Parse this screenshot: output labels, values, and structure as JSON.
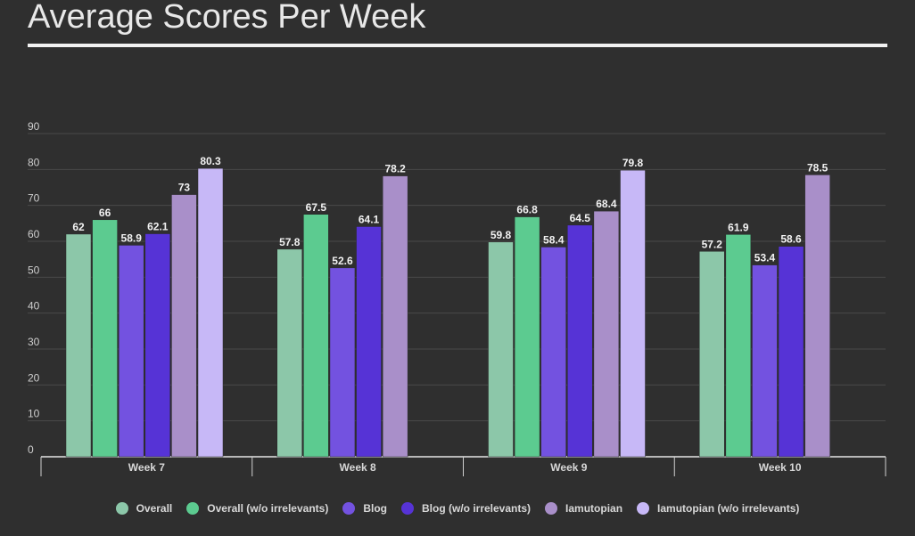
{
  "title": "Average Scores Per Week",
  "chart_data": {
    "type": "bar",
    "categories": [
      "Week 7",
      "Week 8",
      "Week 9",
      "Week 10"
    ],
    "ylim": [
      0,
      90
    ],
    "yticks": [
      0,
      10,
      20,
      30,
      40,
      50,
      60,
      70,
      80,
      90
    ],
    "grid": true,
    "legend_position": "bottom",
    "series": [
      {
        "name": "Overall",
        "color": "#8cc7a9",
        "values": [
          62,
          57.8,
          59.8,
          57.2
        ],
        "labels": [
          "62",
          "57.8",
          "59.8",
          "57.2"
        ]
      },
      {
        "name": "Overall (w/o irrelevants)",
        "color": "#5ccb90",
        "values": [
          66,
          67.5,
          66.8,
          61.9
        ],
        "labels": [
          "66",
          "67.5",
          "66.8",
          "61.9"
        ]
      },
      {
        "name": "Blog",
        "color": "#7352e0",
        "values": [
          58.9,
          52.6,
          58.4,
          53.4
        ],
        "labels": [
          "58.9",
          "52.6",
          "58.4",
          "53.4"
        ]
      },
      {
        "name": "Blog (w/o irrelevants)",
        "color": "#5633d6",
        "values": [
          62.1,
          64.1,
          64.5,
          58.6
        ],
        "labels": [
          "62.1",
          "64.1",
          "64.5",
          "58.6"
        ]
      },
      {
        "name": "Iamutopian",
        "color": "#a98fc9",
        "values": [
          73,
          78.2,
          68.4,
          78.5
        ],
        "labels": [
          "73",
          "78.2",
          "68.4",
          "78.5"
        ]
      },
      {
        "name": "Iamutopian (w/o irrelevants)",
        "color": "#c7b8f7",
        "values": [
          80.3,
          null,
          79.8,
          null
        ],
        "labels": [
          "80.3",
          null,
          "79.8",
          null
        ]
      }
    ]
  }
}
